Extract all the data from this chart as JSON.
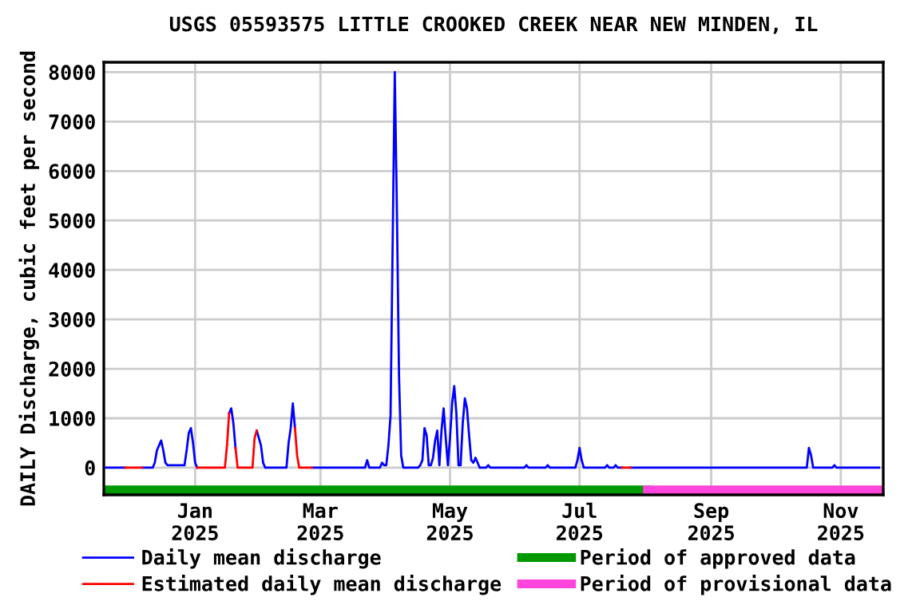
{
  "chart_data": {
    "type": "line",
    "title": "USGS 05593575 LITTLE CROOKED CREEK NEAR NEW MINDEN, IL",
    "ylabel": "DAILY Discharge, cubic feet per second",
    "xlim": [
      "2024-11-19",
      "2025-11-21"
    ],
    "xticks": [
      {
        "value": "2025-01-01",
        "label": "Jan\n2025"
      },
      {
        "value": "2025-03-01",
        "label": "Mar\n2025"
      },
      {
        "value": "2025-05-01",
        "label": "May\n2025"
      },
      {
        "value": "2025-07-01",
        "label": "Jul\n2025"
      },
      {
        "value": "2025-09-01",
        "label": "Sep\n2025"
      },
      {
        "value": "2025-11-01",
        "label": "Nov\n2025"
      }
    ],
    "ylim": [
      -550,
      8200
    ],
    "yticks": [
      0,
      1000,
      2000,
      3000,
      4000,
      5000,
      6000,
      7000,
      8000
    ],
    "grid": true,
    "legend": "bottom",
    "line_style": "solid",
    "marker": "none",
    "series": [
      {
        "name": "Daily mean discharge",
        "color": "#0000ff",
        "x": [
          "2024-11-20",
          "2024-11-29",
          "2024-12-03",
          "2024-12-07",
          "2024-12-12",
          "2024-12-13",
          "2024-12-14",
          "2024-12-16",
          "2024-12-17",
          "2024-12-18",
          "2024-12-19",
          "2024-12-27",
          "2024-12-28",
          "2024-12-29",
          "2024-12-30",
          "2024-12-31",
          "2025-01-01",
          "2025-01-02",
          "2025-01-10",
          "2025-01-17",
          "2025-01-18",
          "2025-01-19",
          "2025-01-20",
          "2025-01-25",
          "2025-01-30",
          "2025-01-31",
          "2025-02-01",
          "2025-02-02",
          "2025-02-03",
          "2025-02-13",
          "2025-02-14",
          "2025-02-15",
          "2025-02-16",
          "2025-02-17",
          "2025-02-21",
          "2025-02-25",
          "2025-03-22",
          "2025-03-23",
          "2025-03-24",
          "2025-03-29",
          "2025-03-30",
          "2025-03-31",
          "2025-04-01",
          "2025-04-02",
          "2025-04-03",
          "2025-04-04",
          "2025-04-05",
          "2025-04-06",
          "2025-04-07",
          "2025-04-08",
          "2025-04-09",
          "2025-04-16",
          "2025-04-17",
          "2025-04-18",
          "2025-04-19",
          "2025-04-20",
          "2025-04-21",
          "2025-04-22",
          "2025-04-23",
          "2025-04-24",
          "2025-04-25",
          "2025-04-26",
          "2025-04-27",
          "2025-04-28",
          "2025-04-29",
          "2025-04-30",
          "2025-05-01",
          "2025-05-02",
          "2025-05-03",
          "2025-05-04",
          "2025-05-05",
          "2025-05-06",
          "2025-05-07",
          "2025-05-08",
          "2025-05-09",
          "2025-05-10",
          "2025-05-11",
          "2025-05-12",
          "2025-05-13",
          "2025-05-14",
          "2025-05-15",
          "2025-05-18",
          "2025-05-19",
          "2025-05-20",
          "2025-06-05",
          "2025-06-06",
          "2025-06-07",
          "2025-06-15",
          "2025-06-16",
          "2025-06-17",
          "2025-06-29",
          "2025-06-30",
          "2025-07-01",
          "2025-07-02",
          "2025-07-03",
          "2025-07-13",
          "2025-07-14",
          "2025-07-15",
          "2025-07-17",
          "2025-07-18",
          "2025-07-19",
          "2025-07-21",
          "2025-07-23",
          "2025-07-25",
          "2025-10-16",
          "2025-10-17",
          "2025-10-18",
          "2025-10-19",
          "2025-10-28",
          "2025-10-29",
          "2025-10-30",
          "2025-11-19"
        ],
        "values": [
          0,
          0,
          null,
          0,
          0,
          100,
          350,
          550,
          350,
          100,
          50,
          50,
          350,
          700,
          800,
          500,
          100,
          0,
          null,
          1100,
          1200,
          900,
          400,
          null,
          750,
          600,
          450,
          100,
          0,
          0,
          500,
          800,
          1300,
          800,
          null,
          0,
          0,
          150,
          0,
          0,
          100,
          50,
          50,
          450,
          1050,
          4550,
          8000,
          5200,
          1850,
          250,
          0,
          0,
          50,
          150,
          800,
          650,
          50,
          50,
          200,
          550,
          750,
          50,
          750,
          1200,
          600,
          50,
          600,
          1300,
          1650,
          1100,
          50,
          50,
          900,
          1400,
          1200,
          650,
          150,
          100,
          200,
          100,
          0,
          0,
          50,
          0,
          0,
          50,
          0,
          0,
          50,
          0,
          0,
          150,
          400,
          150,
          0,
          0,
          50,
          0,
          0,
          50,
          0,
          0,
          null,
          0,
          0,
          400,
          250,
          0,
          0,
          50,
          0,
          0
        ]
      },
      {
        "name": "Estimated daily mean discharge",
        "color": "#ff0000",
        "x": [
          "2024-11-29",
          "2024-12-07",
          "2024-12-20",
          "2025-01-02",
          "2025-01-15",
          "2025-01-16",
          "2025-01-17",
          "2025-01-18",
          "2025-01-20",
          "2025-01-21",
          "2025-01-28",
          "2025-01-29",
          "2025-01-30",
          "2025-02-05",
          "2025-02-17",
          "2025-02-18",
          "2025-02-19",
          "2025-02-25",
          "2025-04-15",
          "2025-07-21",
          "2025-07-25"
        ],
        "values": [
          0,
          0,
          null,
          0,
          0,
          450,
          1100,
          null,
          400,
          0,
          0,
          600,
          750,
          null,
          800,
          250,
          0,
          0,
          null,
          0,
          0
        ]
      },
      {
        "name": "Period of approved data",
        "color": "#009900",
        "x": [
          "2024-11-19",
          "2025-08-02"
        ],
        "values": [
          -450,
          -450
        ]
      },
      {
        "name": "Period of provisional data",
        "color": "#ff44dd",
        "x": [
          "2025-08-02",
          "2025-11-21"
        ],
        "values": [
          -450,
          -450
        ]
      }
    ]
  }
}
